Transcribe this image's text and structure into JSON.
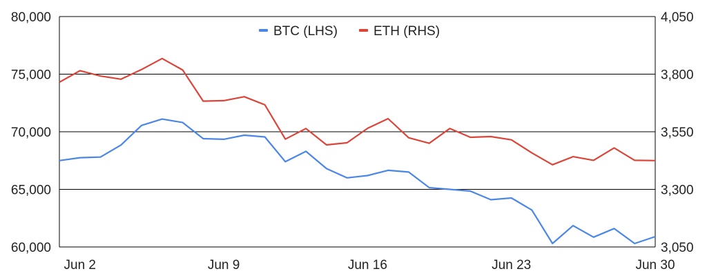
{
  "chart_data": {
    "type": "line",
    "title": "",
    "xlabel": "",
    "ylabel": "",
    "y2label": "",
    "x": [
      "2024-06-01",
      "2024-06-02",
      "2024-06-03",
      "2024-06-04",
      "2024-06-05",
      "2024-06-06",
      "2024-06-07",
      "2024-06-08",
      "2024-06-09",
      "2024-06-10",
      "2024-06-11",
      "2024-06-12",
      "2024-06-13",
      "2024-06-14",
      "2024-06-15",
      "2024-06-16",
      "2024-06-17",
      "2024-06-18",
      "2024-06-19",
      "2024-06-20",
      "2024-06-21",
      "2024-06-22",
      "2024-06-23",
      "2024-06-24",
      "2024-06-25",
      "2024-06-26",
      "2024-06-27",
      "2024-06-28",
      "2024-06-29",
      "2024-06-30"
    ],
    "x_tick_labels": [
      {
        "at": "2024-06-02",
        "label": "Jun 2"
      },
      {
        "at": "2024-06-09",
        "label": "Jun 9"
      },
      {
        "at": "2024-06-16",
        "label": "Jun 16"
      },
      {
        "at": "2024-06-23",
        "label": "Jun 23"
      },
      {
        "at": "2024-06-30",
        "label": "Jun 30"
      }
    ],
    "y_left": {
      "ylim": [
        60000,
        80000
      ],
      "ticks": [
        60000,
        65000,
        70000,
        75000,
        80000
      ],
      "tick_labels": [
        "60,000",
        "65,000",
        "70,000",
        "75,000",
        "80,000"
      ]
    },
    "y_right": {
      "ylim": [
        3050,
        4050
      ],
      "ticks": [
        3050,
        3300,
        3550,
        3800,
        4050
      ],
      "tick_labels": [
        "3,050",
        "3,300",
        "3,550",
        "3,800",
        "4,050"
      ]
    },
    "grid": "horizontal",
    "legend": {
      "position": "top-center"
    },
    "series": [
      {
        "name": "BTC (LHS)",
        "axis": "left",
        "color": "#4a86e8",
        "values": [
          67500,
          67750,
          67800,
          68850,
          70550,
          71100,
          70800,
          69400,
          69350,
          69700,
          69550,
          67400,
          68300,
          66800,
          66000,
          66200,
          66650,
          66500,
          65150,
          65000,
          64850,
          64100,
          64250,
          63200,
          60300,
          61850,
          60850,
          61600,
          60300,
          60900
        ]
      },
      {
        "name": "ETH (RHS)",
        "axis": "right",
        "color": "#db4437",
        "values": [
          3765,
          3815,
          3792,
          3778,
          3820,
          3868,
          3818,
          3683,
          3685,
          3702,
          3667,
          3518,
          3564,
          3493,
          3502,
          3565,
          3607,
          3524,
          3500,
          3564,
          3526,
          3529,
          3515,
          3458,
          3407,
          3442,
          3426,
          3480,
          3426,
          3425
        ]
      }
    ],
    "extra_point": {
      "series": "BTC (LHS)",
      "at": "2024-06-30",
      "note_only_for_drawing": false
    }
  }
}
